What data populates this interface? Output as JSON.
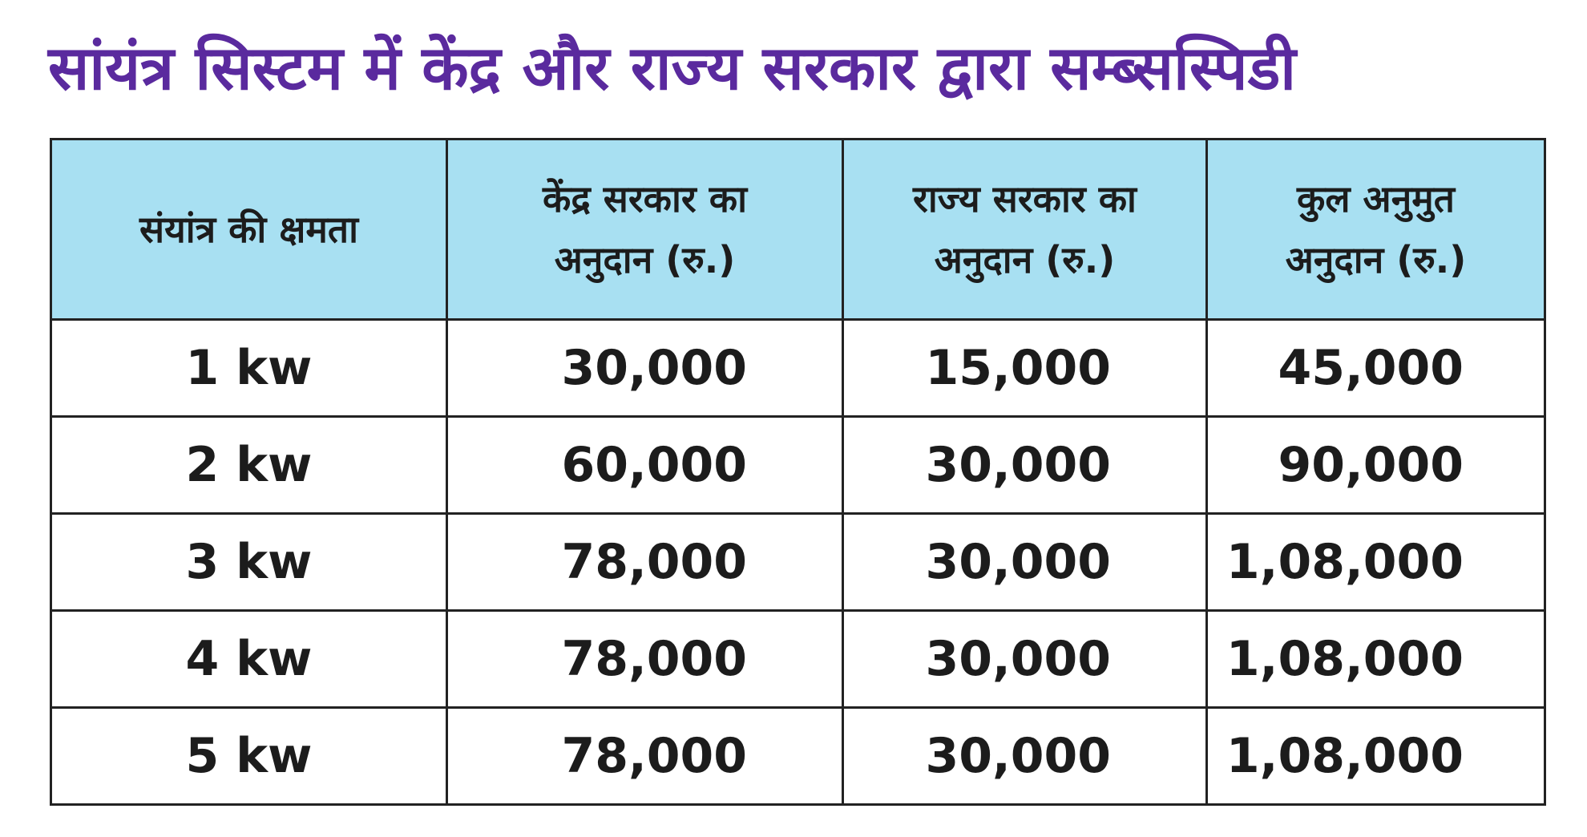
{
  "title": "सांयंत्र सिस्टम में केंद्र और राज्य सरकार द्वारा सम्ब्सस्पिडी",
  "colors": {
    "title": "#5a2a9e",
    "header_bg": "#a8e0f2",
    "border": "#222222",
    "text": "#1c1c1c"
  },
  "table": {
    "headers": [
      {
        "line1": "संयांत्र की क्षमता",
        "line2": ""
      },
      {
        "line1": "केंद्र सरकार का",
        "line2": "अनुदान (रु.)"
      },
      {
        "line1": "राज्य सरकार का",
        "line2": "अनुदान (रु.)"
      },
      {
        "line1": "कुल अनुमुत",
        "line2": "अनुदान (रु.)"
      }
    ],
    "rows": [
      {
        "capacity": "1 kw",
        "central": "30,000",
        "state": "15,000",
        "total": "45,000"
      },
      {
        "capacity": "2 kw",
        "central": "60,000",
        "state": "30,000",
        "total": "90,000"
      },
      {
        "capacity": "3 kw",
        "central": "78,000",
        "state": "30,000",
        "total": "1,08,000"
      },
      {
        "capacity": "4 kw",
        "central": "78,000",
        "state": "30,000",
        "total": "1,08,000"
      },
      {
        "capacity": "5 kw",
        "central": "78,000",
        "state": "30,000",
        "total": "1,08,000"
      }
    ]
  }
}
